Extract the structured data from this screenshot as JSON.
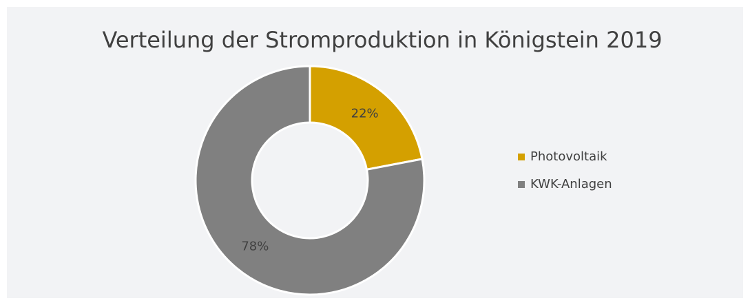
{
  "chart_data": {
    "type": "donut",
    "title": "Verteilung der Stromproduktion in Königstein 2019",
    "categories": [
      "Photovoltaik",
      "KWK-Anlagen"
    ],
    "values": [
      22,
      78
    ],
    "value_labels": [
      "22%",
      "78%"
    ],
    "colors": [
      "#d4a000",
      "#808080"
    ],
    "legend": "right"
  }
}
